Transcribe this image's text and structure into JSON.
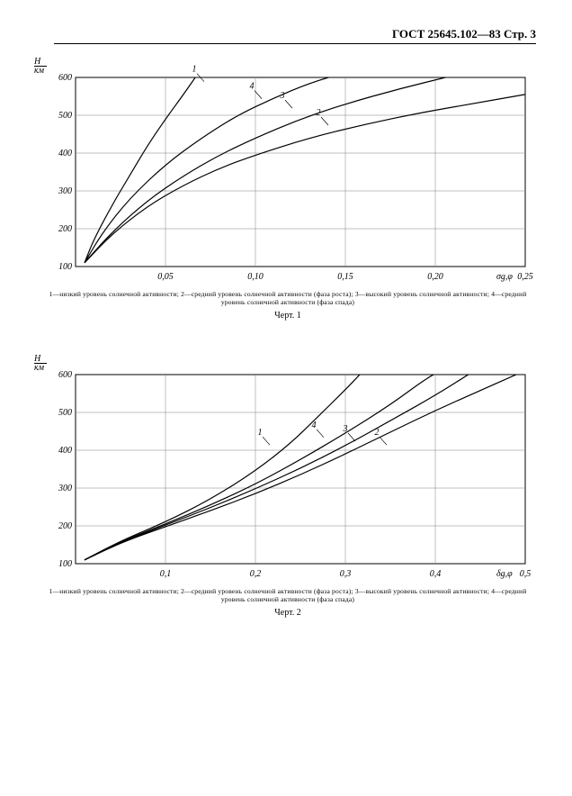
{
  "header": {
    "text": "ГОСТ 25645.102—83 Стр. 3"
  },
  "chart1": {
    "type": "line",
    "ylabel_top": "H",
    "ylabel_bot": "км",
    "ylim": [
      100,
      600
    ],
    "yticks": [
      100,
      200,
      300,
      400,
      500,
      600
    ],
    "xlim": [
      0,
      0.25
    ],
    "xticks": [
      0.05,
      0.1,
      0.15,
      0.2,
      0.25
    ],
    "xtick_labels": [
      "0,05",
      "0,10",
      "0,15",
      "0,20",
      "0,25"
    ],
    "x_axis_symbol": "σg,φ",
    "background_color": "#ffffff",
    "axis_color": "#000000",
    "grid_color": "#808080",
    "line_width": 1.2,
    "series": [
      {
        "id": "1",
        "label_pos": {
          "x": 0.066,
          "y": 615
        },
        "points": [
          [
            0.005,
            110
          ],
          [
            0.01,
            170
          ],
          [
            0.02,
            260
          ],
          [
            0.03,
            340
          ],
          [
            0.04,
            420
          ],
          [
            0.05,
            490
          ],
          [
            0.06,
            555
          ],
          [
            0.068,
            610
          ]
        ]
      },
      {
        "id": "4",
        "label_pos": {
          "x": 0.098,
          "y": 570
        },
        "points": [
          [
            0.005,
            110
          ],
          [
            0.015,
            190
          ],
          [
            0.03,
            280
          ],
          [
            0.05,
            370
          ],
          [
            0.07,
            440
          ],
          [
            0.09,
            500
          ],
          [
            0.11,
            545
          ],
          [
            0.13,
            585
          ],
          [
            0.15,
            613
          ]
        ]
      },
      {
        "id": "3",
        "label_pos": {
          "x": 0.115,
          "y": 545
        },
        "points": [
          [
            0.005,
            110
          ],
          [
            0.02,
            190
          ],
          [
            0.04,
            275
          ],
          [
            0.06,
            340
          ],
          [
            0.08,
            395
          ],
          [
            0.1,
            440
          ],
          [
            0.125,
            490
          ],
          [
            0.15,
            530
          ],
          [
            0.18,
            570
          ],
          [
            0.21,
            605
          ]
        ]
      },
      {
        "id": "2",
        "label_pos": {
          "x": 0.135,
          "y": 500
        },
        "points": [
          [
            0.005,
            110
          ],
          [
            0.02,
            185
          ],
          [
            0.04,
            260
          ],
          [
            0.06,
            315
          ],
          [
            0.08,
            360
          ],
          [
            0.1,
            395
          ],
          [
            0.13,
            440
          ],
          [
            0.16,
            475
          ],
          [
            0.19,
            505
          ],
          [
            0.22,
            530
          ],
          [
            0.25,
            555
          ]
        ]
      }
    ],
    "caption": "1—низкий уровень солнечной активности; 2—средний уровень солнечной активности (фаза роста); 3—высокий уровень солнечной активности; 4—средний уровень солнечной активности (фаза спада)",
    "fig_label": "Черт. 1"
  },
  "chart2": {
    "type": "line",
    "ylabel_top": "H",
    "ylabel_bot": "км",
    "ylim": [
      100,
      600
    ],
    "yticks": [
      100,
      200,
      300,
      400,
      500,
      600
    ],
    "xlim": [
      0,
      0.5
    ],
    "xticks": [
      0.1,
      0.2,
      0.3,
      0.4,
      0.5
    ],
    "xtick_labels": [
      "0,1",
      "0,2",
      "0,3",
      "0,4",
      "0,5"
    ],
    "x_axis_symbol": "δg,φ",
    "background_color": "#ffffff",
    "axis_color": "#000000",
    "grid_color": "#808080",
    "line_width": 1.2,
    "series": [
      {
        "id": "1",
        "label_pos": {
          "x": 0.205,
          "y": 440
        },
        "points": [
          [
            0.01,
            110
          ],
          [
            0.05,
            160
          ],
          [
            0.1,
            210
          ],
          [
            0.15,
            270
          ],
          [
            0.2,
            345
          ],
          [
            0.24,
            420
          ],
          [
            0.27,
            490
          ],
          [
            0.3,
            560
          ],
          [
            0.32,
            610
          ]
        ]
      },
      {
        "id": "4",
        "label_pos": {
          "x": 0.265,
          "y": 460
        },
        "points": [
          [
            0.01,
            110
          ],
          [
            0.05,
            158
          ],
          [
            0.1,
            205
          ],
          [
            0.15,
            255
          ],
          [
            0.2,
            310
          ],
          [
            0.25,
            375
          ],
          [
            0.3,
            445
          ],
          [
            0.35,
            520
          ],
          [
            0.39,
            590
          ],
          [
            0.41,
            615
          ]
        ]
      },
      {
        "id": "3",
        "label_pos": {
          "x": 0.3,
          "y": 450
        },
        "points": [
          [
            0.01,
            110
          ],
          [
            0.05,
            156
          ],
          [
            0.1,
            202
          ],
          [
            0.15,
            248
          ],
          [
            0.2,
            298
          ],
          [
            0.25,
            352
          ],
          [
            0.3,
            412
          ],
          [
            0.35,
            478
          ],
          [
            0.4,
            545
          ],
          [
            0.44,
            605
          ]
        ]
      },
      {
        "id": "2",
        "label_pos": {
          "x": 0.335,
          "y": 440
        },
        "points": [
          [
            0.01,
            110
          ],
          [
            0.05,
            155
          ],
          [
            0.1,
            198
          ],
          [
            0.15,
            240
          ],
          [
            0.2,
            285
          ],
          [
            0.25,
            335
          ],
          [
            0.3,
            390
          ],
          [
            0.35,
            448
          ],
          [
            0.4,
            505
          ],
          [
            0.45,
            558
          ],
          [
            0.49,
            600
          ]
        ]
      }
    ],
    "caption": "1—низкий уровень солнечной активности; 2—средний уровень солнечной активности (фаза роста); 3—высокий уровень солнечной активности; 4—средний уровень солнечной активности (фаза спада)",
    "fig_label": "Черт. 2"
  }
}
